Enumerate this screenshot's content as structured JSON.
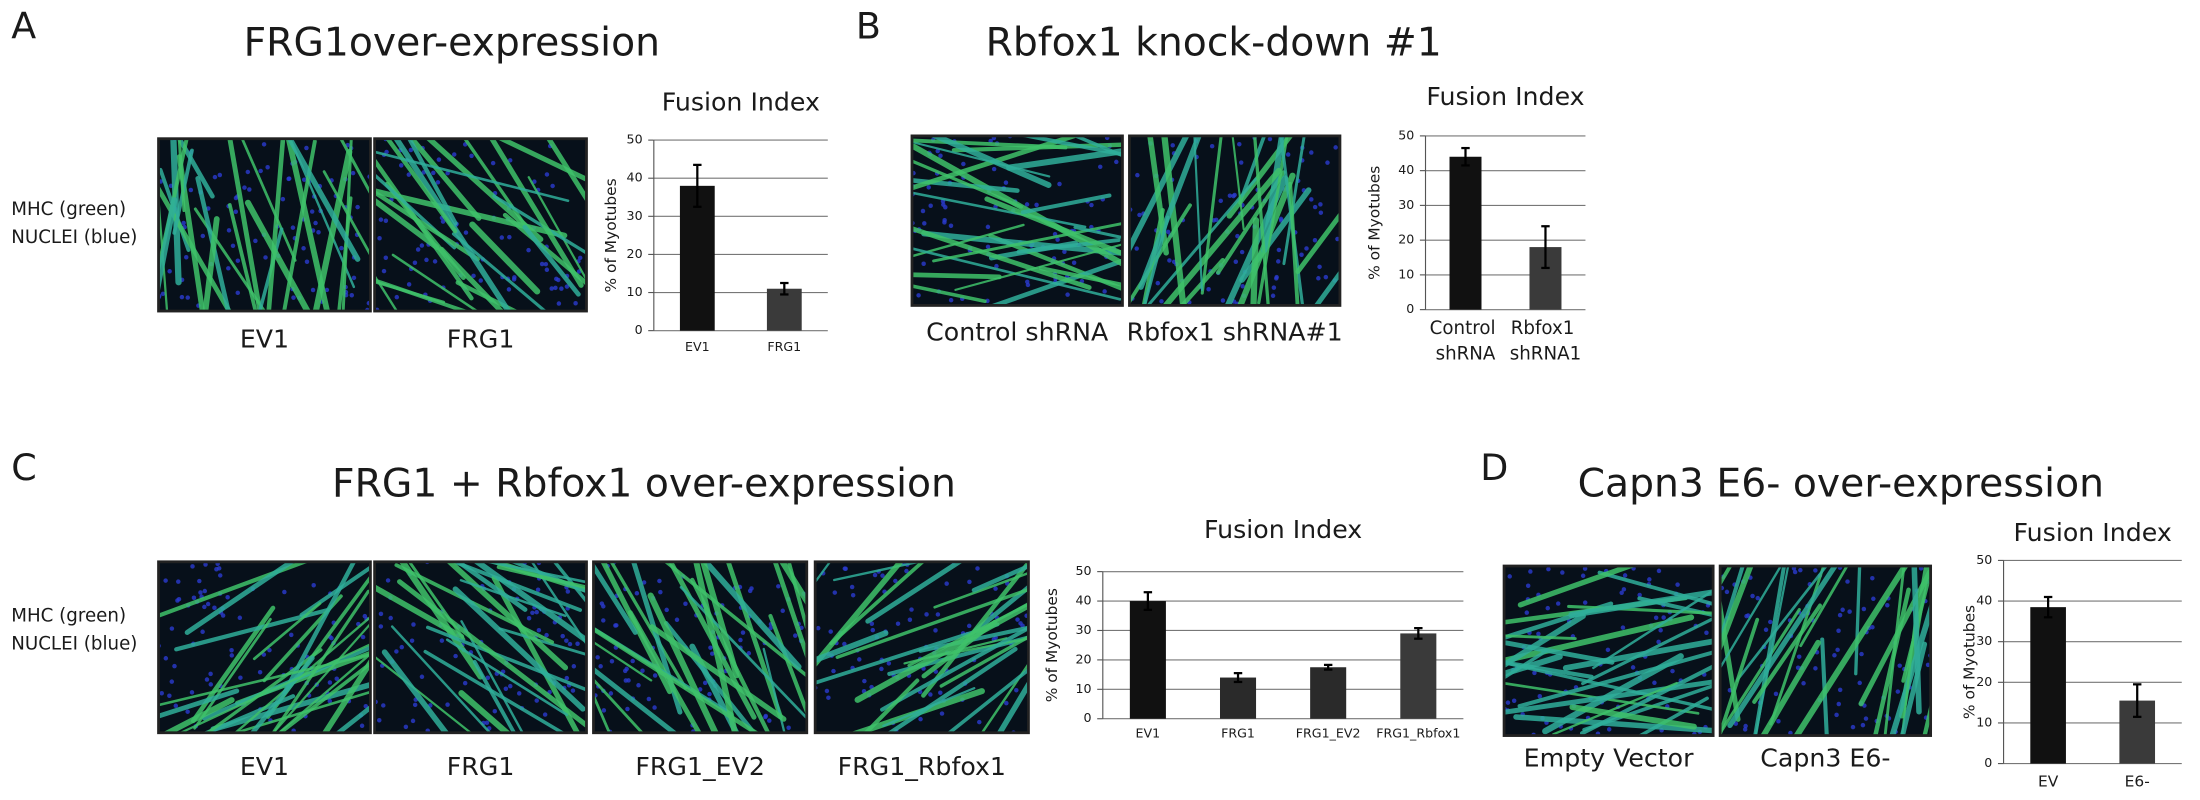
{
  "panels": [
    {
      "letter": "A",
      "title": "FRG1over-expression",
      "stain_label": [
        "MHC (green)",
        "NUCLEI (blue)"
      ],
      "images": [
        "EV1",
        "FRG1"
      ]
    },
    {
      "letter": "B",
      "title": "Rbfox1 knock-down #1",
      "images": [
        "Control shRNA",
        "Rbfox1 shRNA#1"
      ]
    },
    {
      "letter": "C",
      "title": "FRG1 + Rbfox1 over-expression",
      "stain_label": [
        "MHC (green)",
        "NUCLEI (blue)"
      ],
      "images": [
        "EV1",
        "FRG1",
        "FRG1_EV2",
        "FRG1_Rbfox1"
      ]
    },
    {
      "letter": "D",
      "title": "Capn3 E6- over-expression",
      "images": [
        "Empty Vector",
        "Capn3 E6-"
      ]
    }
  ],
  "chart_data": [
    {
      "type": "bar",
      "title": "Fusion Index",
      "ylabel": "% of Myotubes",
      "categories": [
        "EV1",
        "FRG1"
      ],
      "values": [
        38,
        11
      ],
      "errors": [
        5.5,
        1.5
      ],
      "colors": [
        "#111111",
        "#3a3a3a"
      ],
      "ylim": [
        0,
        50
      ],
      "yticks": [
        0,
        10,
        20,
        30,
        40,
        50
      ],
      "grid": true
    },
    {
      "type": "bar",
      "title": "Fusion Index",
      "ylabel": "% of Myotubes",
      "categories": [
        "Control shRNA",
        "Rbfox1 shRNA1"
      ],
      "values": [
        44,
        18
      ],
      "errors": [
        2.5,
        6
      ],
      "colors": [
        "#111111",
        "#3a3a3a"
      ],
      "ylim": [
        0,
        50
      ],
      "yticks": [
        0,
        10,
        20,
        30,
        40,
        50
      ],
      "grid": true
    },
    {
      "type": "bar",
      "title": "Fusion Index",
      "ylabel": "% of Myotubes",
      "categories": [
        "EV1",
        "FRG1",
        "FRG1_EV2",
        "FRG1_Rbfox1"
      ],
      "values": [
        40,
        14,
        17.5,
        29
      ],
      "errors": [
        3,
        1.5,
        0.8,
        1.8
      ],
      "colors": [
        "#111111",
        "#2a2a2a",
        "#2a2a2a",
        "#3a3a3a"
      ],
      "ylim": [
        0,
        50
      ],
      "yticks": [
        0,
        10,
        20,
        30,
        40,
        50
      ],
      "grid": true
    },
    {
      "type": "bar",
      "title": "Fusion Index",
      "ylabel": "% of Myotubes",
      "categories": [
        "EV",
        "E6-"
      ],
      "values": [
        38.5,
        15.5
      ],
      "errors": [
        2.5,
        4
      ],
      "colors": [
        "#111111",
        "#3a3a3a"
      ],
      "ylim": [
        0,
        50
      ],
      "yticks": [
        0,
        10,
        20,
        30,
        40,
        50
      ],
      "grid": true
    }
  ]
}
